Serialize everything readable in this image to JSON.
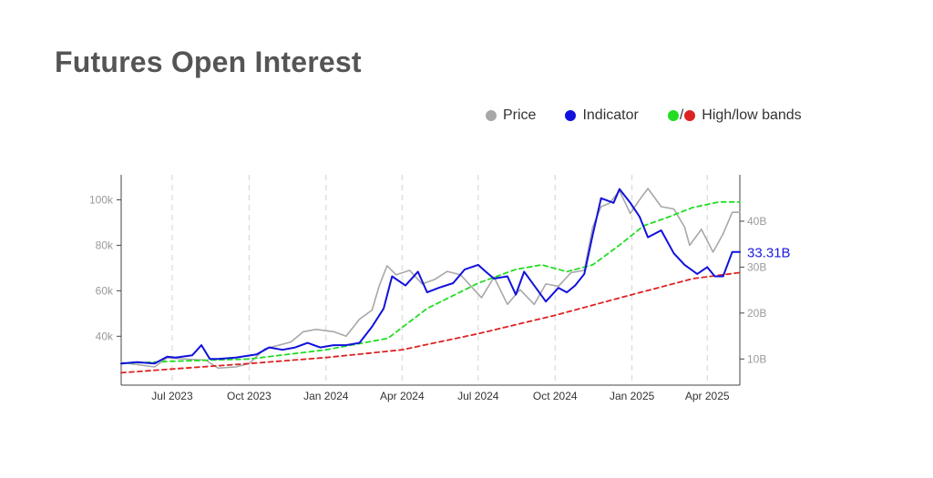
{
  "title": "Futures Open Interest",
  "legend": {
    "price": "Price",
    "indicator": "Indicator",
    "bands_sep": "/",
    "bands": "High/low bands"
  },
  "colors": {
    "price": "#a8a8a8",
    "indicator": "#1111dd",
    "high_band": "#22dd22",
    "low_band": "#dd2222",
    "title": "#555555"
  },
  "chart_data": {
    "type": "line",
    "x_tick_labels": [
      "Jul 2023",
      "Oct 2023",
      "Jan 2024",
      "Apr 2024",
      "Jul 2024",
      "Oct 2024",
      "Jan 2025",
      "Apr 2025"
    ],
    "x_ticks": [
      "2023-07-01",
      "2023-10-01",
      "2024-01-01",
      "2024-04-01",
      "2024-07-01",
      "2024-10-01",
      "2025-01-01",
      "2025-04-01"
    ],
    "x_range": [
      "2023-05-01",
      "2025-05-10"
    ],
    "left_axis": {
      "ticks": [
        40000,
        60000,
        80000,
        100000
      ],
      "tick_labels": [
        "40k",
        "60k",
        "80k",
        "100k"
      ],
      "range": [
        18500,
        111000
      ]
    },
    "right_axis": {
      "ticks": [
        10,
        20,
        30,
        40
      ],
      "tick_labels": [
        "10B",
        "20B",
        "30B",
        "40B"
      ],
      "range": [
        4.3,
        50.1
      ]
    },
    "last_value_label": "33.31B",
    "grid": "vertical dashed",
    "series": [
      {
        "name": "Price",
        "axis": "left",
        "x": [
          "2023-05-01",
          "2023-05-20",
          "2023-06-10",
          "2023-06-25",
          "2023-07-15",
          "2023-08-10",
          "2023-08-25",
          "2023-09-15",
          "2023-10-01",
          "2023-10-20",
          "2023-11-05",
          "2023-11-20",
          "2023-12-05",
          "2023-12-20",
          "2024-01-10",
          "2024-01-25",
          "2024-02-10",
          "2024-02-25",
          "2024-03-05",
          "2024-03-14",
          "2024-03-25",
          "2024-04-10",
          "2024-04-25",
          "2024-05-10",
          "2024-05-25",
          "2024-06-10",
          "2024-06-25",
          "2024-07-05",
          "2024-07-20",
          "2024-08-05",
          "2024-08-20",
          "2024-09-06",
          "2024-09-20",
          "2024-10-05",
          "2024-10-20",
          "2024-11-05",
          "2024-11-15",
          "2024-11-25",
          "2024-12-05",
          "2024-12-17",
          "2024-12-30",
          "2025-01-10",
          "2025-01-20",
          "2025-02-05",
          "2025-02-20",
          "2025-03-05",
          "2025-03-11",
          "2025-03-25",
          "2025-04-08",
          "2025-04-20",
          "2025-05-01",
          "2025-05-10"
        ],
        "y": [
          28500,
          27500,
          26500,
          30500,
          30000,
          29500,
          26000,
          26500,
          28000,
          34500,
          36000,
          37500,
          42000,
          43000,
          42000,
          40000,
          47500,
          51500,
          62500,
          71000,
          67000,
          69000,
          63000,
          65000,
          68500,
          67000,
          61000,
          57000,
          66000,
          54000,
          60500,
          54000,
          63000,
          62000,
          68000,
          69000,
          88000,
          97000,
          98500,
          104000,
          94000,
          100000,
          105000,
          97000,
          96000,
          88000,
          80000,
          87000,
          77000,
          85000,
          94500,
          94500
        ]
      },
      {
        "name": "Indicator",
        "axis": "right",
        "x": [
          "2023-05-01",
          "2023-05-20",
          "2023-06-10",
          "2023-06-25",
          "2023-07-05",
          "2023-07-25",
          "2023-08-05",
          "2023-08-15",
          "2023-08-25",
          "2023-09-15",
          "2023-10-10",
          "2023-10-25",
          "2023-11-10",
          "2023-11-25",
          "2023-12-10",
          "2023-12-25",
          "2024-01-10",
          "2024-01-25",
          "2024-02-10",
          "2024-02-25",
          "2024-03-10",
          "2024-03-20",
          "2024-04-05",
          "2024-04-20",
          "2024-05-01",
          "2024-05-15",
          "2024-06-01",
          "2024-06-15",
          "2024-07-01",
          "2024-07-10",
          "2024-07-20",
          "2024-08-05",
          "2024-08-15",
          "2024-08-25",
          "2024-09-06",
          "2024-09-20",
          "2024-10-05",
          "2024-10-15",
          "2024-10-25",
          "2024-11-05",
          "2024-11-15",
          "2024-11-25",
          "2024-12-10",
          "2024-12-17",
          "2024-12-30",
          "2025-01-10",
          "2025-01-20",
          "2025-02-05",
          "2025-02-20",
          "2025-03-05",
          "2025-03-20",
          "2025-04-01",
          "2025-04-10",
          "2025-04-20",
          "2025-05-01",
          "2025-05-10"
        ],
        "y": [
          9.0,
          9.3,
          9.0,
          10.5,
          10.3,
          10.8,
          13.0,
          10.0,
          10.0,
          10.3,
          11.0,
          12.5,
          12.0,
          12.5,
          13.5,
          12.5,
          13.0,
          13.0,
          13.5,
          17.0,
          21.0,
          28.0,
          26.0,
          29.0,
          24.5,
          25.5,
          26.5,
          29.5,
          30.5,
          29.0,
          27.5,
          28.0,
          24.0,
          29.0,
          26.0,
          22.5,
          25.5,
          24.5,
          26.0,
          28.5,
          37.0,
          45.0,
          44.0,
          47.0,
          44.0,
          41.0,
          36.5,
          38.0,
          33.0,
          30.5,
          28.5,
          30.0,
          28.0,
          28.0,
          33.31,
          33.31
        ]
      },
      {
        "name": "High band",
        "axis": "right",
        "x": [
          "2023-05-01",
          "2023-07-01",
          "2023-10-01",
          "2024-01-01",
          "2024-03-15",
          "2024-05-01",
          "2024-07-01",
          "2024-08-15",
          "2024-09-15",
          "2024-10-15",
          "2024-11-15",
          "2024-12-15",
          "2025-01-15",
          "2025-02-15",
          "2025-03-15",
          "2025-04-15",
          "2025-05-10"
        ],
        "y": [
          9.0,
          9.5,
          10.0,
          12.0,
          14.5,
          21.0,
          26.5,
          29.5,
          30.5,
          29.0,
          30.5,
          34.5,
          39.0,
          41.0,
          43.0,
          44.2,
          44.2
        ]
      },
      {
        "name": "Low band",
        "axis": "right",
        "x": [
          "2023-05-01",
          "2023-07-01",
          "2023-10-01",
          "2024-01-01",
          "2024-04-01",
          "2024-07-01",
          "2024-10-01",
          "2025-01-01",
          "2025-03-15",
          "2025-05-10"
        ],
        "y": [
          7.0,
          7.8,
          9.0,
          10.3,
          12.0,
          15.5,
          19.5,
          24.0,
          27.5,
          28.8
        ]
      }
    ]
  }
}
